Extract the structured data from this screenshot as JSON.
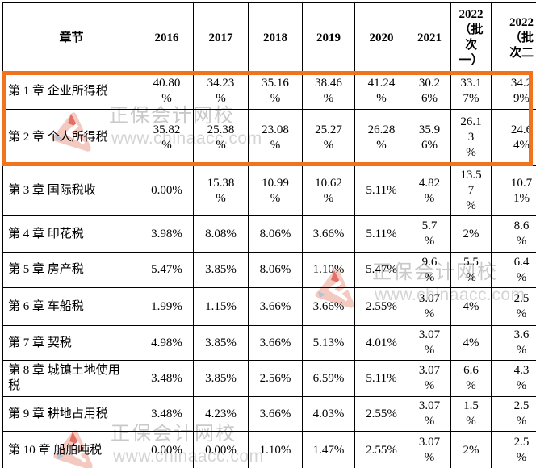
{
  "table": {
    "header": [
      "章节",
      "2016",
      "2017",
      "2018",
      "2019",
      "2020",
      "2021",
      "2022\n（批\n次\n一）",
      "2022\n（批\n次二"
    ],
    "rows": [
      {
        "chapter": "第 1 章 企业所得税",
        "values": [
          "40.80\n%",
          "34.23\n%",
          "35.16\n%",
          "38.46\n%",
          "41.24\n%",
          "30.2\n6%",
          "33.1\n7%",
          "34.2\n9%"
        ]
      },
      {
        "chapter": "第 2 章 个人所得税",
        "values": [
          "35.82\n%",
          "25.38\n%",
          "23.08\n%",
          "25.27\n%",
          "26.28\n%",
          "35.9\n6%",
          "26.1\n3\n%",
          "24.6\n4%"
        ]
      },
      {
        "chapter": "第 3 章 国际税收",
        "values": [
          "0.00%",
          "15.38\n%",
          "10.99\n%",
          "10.62\n%",
          "5.11%",
          "4.82\n%",
          "13.5\n7\n%",
          "10.7\n1%"
        ]
      },
      {
        "chapter": "第 4 章 印花税",
        "values": [
          "3.98%",
          "8.08%",
          "8.06%",
          "3.66%",
          "5.11%",
          "5.7\n%",
          "2%",
          "8.6\n%"
        ]
      },
      {
        "chapter": "第 5 章 房产税",
        "values": [
          "5.47%",
          "3.85%",
          "8.06%",
          "1.10%",
          "5.47%",
          "9.6\n%",
          "5.5\n%",
          "6.4\n%"
        ]
      },
      {
        "chapter": "第 6 章 车船税",
        "values": [
          "1.99%",
          "1.15%",
          "3.66%",
          "3.66%",
          "2.55%",
          "3.07\n%",
          "4%",
          "2.5\n%"
        ]
      },
      {
        "chapter": "第 7 章 契税",
        "values": [
          "4.98%",
          "3.85%",
          "3.66%",
          "5.13%",
          "4.01%",
          "3.07\n%",
          "4%",
          "3.6\n%"
        ]
      },
      {
        "chapter": "第 8 章 城镇土地使用\n税",
        "values": [
          "3.48%",
          "3.85%",
          "2.56%",
          "6.59%",
          "5.11%",
          "3.07\n%",
          "6.6\n%",
          "4.3\n%"
        ]
      },
      {
        "chapter": "第 9 章 耕地占用税",
        "values": [
          "3.48%",
          "4.23%",
          "3.66%",
          "4.03%",
          "2.55%",
          "3.07\n%",
          "1.5\n%",
          "2.5\n%"
        ]
      },
      {
        "chapter": "第 10 章 船舶吨税",
        "values": [
          "0.00%",
          "0.00%",
          "1.10%",
          "1.47%",
          "2.55%",
          "3.07\n%",
          "2%",
          "2.5\n%"
        ]
      }
    ]
  },
  "watermark": {
    "brand_text": "正保会计网校",
    "url_text": "www.chinaacc.com",
    "logo_icon": "chinaacc-logo-icon",
    "text_color": "#c9c9c9"
  },
  "highlight": {
    "color": "#F2731D"
  }
}
